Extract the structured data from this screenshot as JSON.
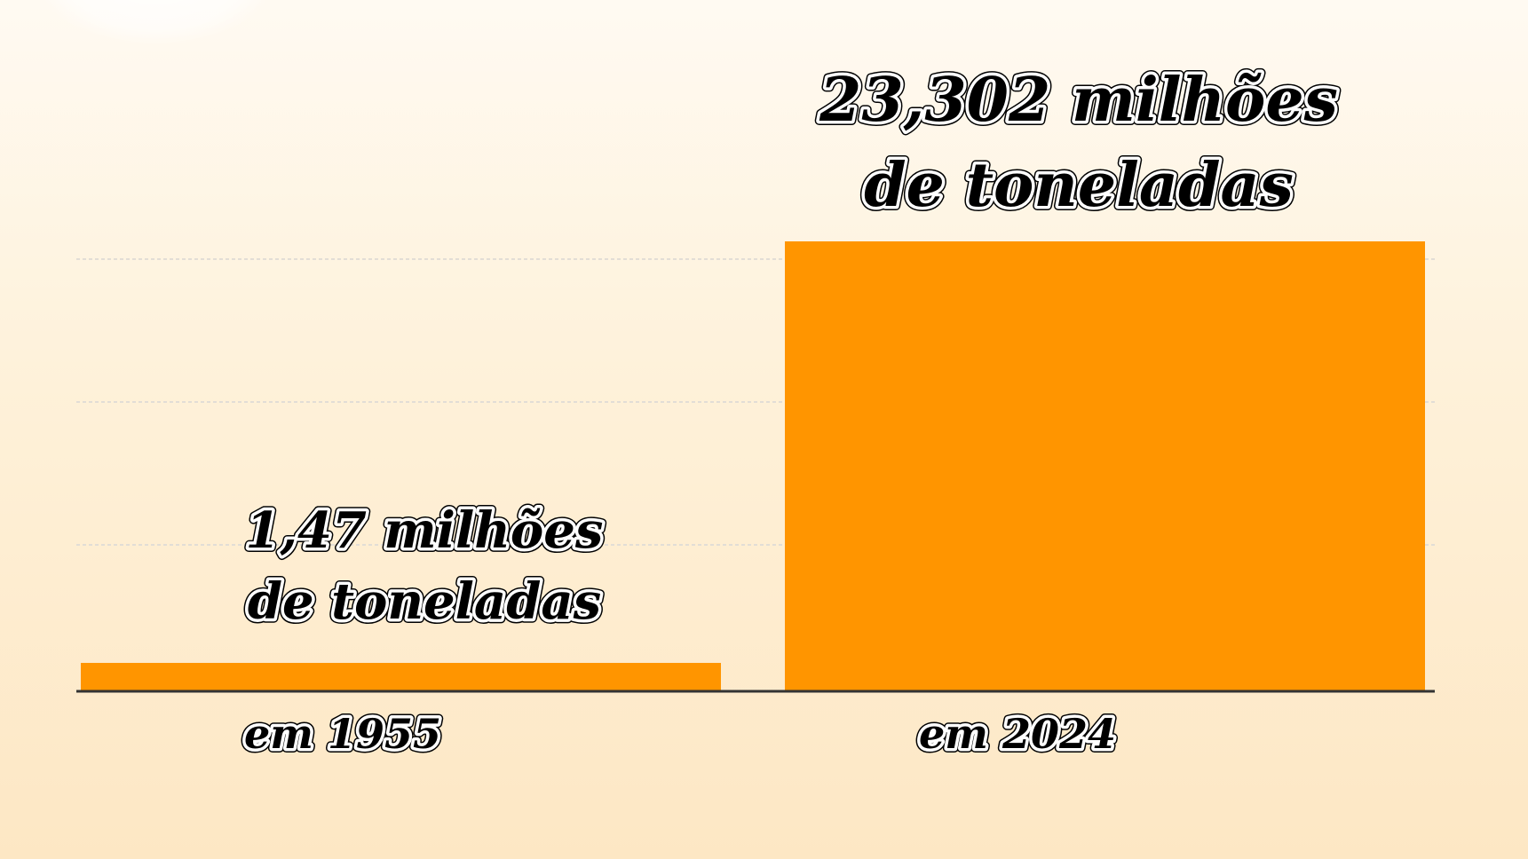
{
  "chart_data": {
    "type": "bar",
    "categories": [
      "em 1955",
      "em 2024"
    ],
    "values": [
      1.47,
      23.302
    ],
    "data_labels": [
      [
        "1,47 milhões",
        "de toneladas"
      ],
      [
        "23,302 milhões",
        "de toneladas"
      ]
    ],
    "title": "",
    "xlabel": "",
    "ylabel": "",
    "ylim": [
      0,
      23.302
    ],
    "grid": true,
    "bar_color": "#ff9500",
    "gridline_color": "#e2ddd6",
    "axis_color": "#333333"
  }
}
